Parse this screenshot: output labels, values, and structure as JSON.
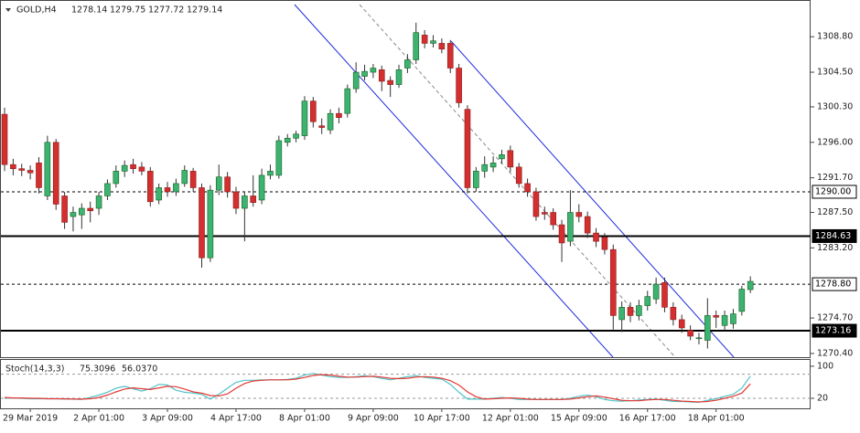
{
  "chart_data": {
    "type": "candlestick",
    "title": "GOLD,H4",
    "categories": [
      null,
      null,
      null,
      "29 Mar 2019",
      null,
      null,
      null,
      null,
      null,
      null,
      null,
      "2 Apr 01:00",
      null,
      null,
      null,
      null,
      null,
      null,
      null,
      "3 Apr 09:00",
      null,
      null,
      null,
      null,
      null,
      null,
      null,
      "4 Apr 17:00",
      null,
      null,
      null,
      null,
      null,
      null,
      null,
      "8 Apr 01:00",
      null,
      null,
      null,
      null,
      null,
      null,
      null,
      "9 Apr 09:00",
      null,
      null,
      null,
      null,
      null,
      null,
      null,
      "10 Apr 17:00",
      null,
      null,
      null,
      null,
      null,
      null,
      null,
      "12 Apr 01:00",
      null,
      null,
      null,
      null,
      null,
      null,
      null,
      "15 Apr 09:00",
      null,
      null,
      null,
      null,
      null,
      null,
      null,
      "16 Apr 17:00",
      null,
      null,
      null,
      null,
      null,
      null,
      null,
      "18 Apr 01:00",
      null,
      null,
      null,
      null
    ],
    "open": [
      1299.4,
      1293.3,
      1292.8,
      1292.6,
      1293.5,
      1289.5,
      1296,
      1289.5,
      1287,
      1287.2,
      1288,
      1288,
      1289.5,
      1291,
      1292.5,
      1293.3,
      1293,
      1292.5,
      1289,
      1290.5,
      1290,
      1291,
      1292.5,
      1290.5,
      1282,
      1290.2,
      1291.8,
      1290,
      1288,
      1289.5,
      1289,
      1292,
      1292,
      1296,
      1296.5,
      1296.8,
      1301,
      1298,
      1297.5,
      1299.5,
      1299.5,
      1302.5,
      1304,
      1304.5,
      1304.8,
      1303.5,
      1303,
      1305,
      1306,
      1309,
      1308,
      1308,
      1308,
      1305,
      1300,
      1290.5,
      1292.5,
      1293,
      1294,
      1295,
      1293,
      1291,
      1290,
      1287.5,
      1287.5,
      1286,
      1284,
      1287.5,
      1287,
      1285,
      1284.5,
      1283,
      1274.5,
      1276,
      1275,
      1276.2,
      1277,
      1279,
      1276,
      1274.5,
      1273.2,
      1272.3,
      1272,
      1275,
      1273.8,
      1274,
      1275.5,
      1278.14
    ],
    "high": [
      1300.2,
      1294,
      1293.4,
      1293.2,
      1294.2,
      1296.8,
      1296.4,
      1290,
      1288.2,
      1288.6,
      1288.8,
      1290,
      1291.5,
      1293.2,
      1293.8,
      1294,
      1293.6,
      1293,
      1291,
      1291.2,
      1291.6,
      1293.2,
      1292.9,
      1291,
      1290.8,
      1293.3,
      1292.4,
      1290.6,
      1290,
      1292,
      1292.8,
      1293.3,
      1296.8,
      1297,
      1297.4,
      1301.6,
      1301.5,
      1298.9,
      1300,
      1300.2,
      1303,
      1305.7,
      1305.4,
      1305.5,
      1305.3,
      1304,
      1305.4,
      1306.7,
      1310.5,
      1309.6,
      1309,
      1308.6,
      1308.4,
      1305.5,
      1300.5,
      1293,
      1294.3,
      1294.3,
      1295.1,
      1295.6,
      1293.5,
      1291.6,
      1290.5,
      1288.2,
      1288,
      1286.6,
      1290.2,
      1288.5,
      1287.6,
      1285.6,
      1285,
      1283.6,
      1276.7,
      1276.6,
      1276.9,
      1278,
      1279.6,
      1279.6,
      1276.6,
      1275.1,
      1273.8,
      1272.9,
      1277.1,
      1275.6,
      1275.6,
      1275.8,
      1278.6,
      1279.75
    ],
    "low": [
      1292.5,
      1292,
      1291.9,
      1291.5,
      1289.8,
      1289,
      1287.8,
      1285.5,
      1285.2,
      1285.5,
      1286.3,
      1287.2,
      1289,
      1290.5,
      1291.8,
      1292.2,
      1292,
      1288.2,
      1288.5,
      1289.4,
      1289.5,
      1290.6,
      1290,
      1280.8,
      1281.5,
      1289.6,
      1289.3,
      1287.3,
      1284,
      1288.2,
      1288.5,
      1291.5,
      1291.6,
      1295.5,
      1296,
      1296.3,
      1297.8,
      1297,
      1297,
      1298.3,
      1299,
      1302,
      1303.5,
      1303.8,
      1302.2,
      1301.5,
      1302.6,
      1304.4,
      1305.5,
      1307.4,
      1307.5,
      1306.8,
      1304.4,
      1300.2,
      1289.8,
      1290,
      1291.7,
      1292.4,
      1293.4,
      1292.4,
      1290.5,
      1289.4,
      1286.5,
      1286.6,
      1285.4,
      1281.5,
      1283.4,
      1286.3,
      1284.4,
      1283.3,
      1282.4,
      1273.3,
      1273,
      1274.2,
      1274.4,
      1275.6,
      1276.4,
      1275.4,
      1273.8,
      1272.9,
      1272,
      1271.5,
      1271,
      1273.5,
      1273.2,
      1273.4,
      1275,
      1277.72
    ],
    "close": [
      1293.3,
      1292.8,
      1292.6,
      1292.3,
      1290.5,
      1296,
      1288.5,
      1286.3,
      1287.5,
      1288,
      1287.7,
      1289.5,
      1291,
      1292.5,
      1293.2,
      1292.8,
      1292.5,
      1288.8,
      1290.5,
      1290,
      1291,
      1292.6,
      1290.5,
      1282,
      1290.2,
      1291.8,
      1290,
      1288,
      1289.5,
      1288.7,
      1292,
      1292.5,
      1296.2,
      1296.5,
      1297,
      1301,
      1298.5,
      1297.8,
      1299.5,
      1299,
      1302.5,
      1304.5,
      1304.6,
      1305,
      1303.4,
      1303,
      1304.8,
      1306,
      1309.3,
      1308,
      1308.3,
      1307.3,
      1305,
      1300.8,
      1290.5,
      1292.5,
      1293.3,
      1293.5,
      1294.5,
      1293,
      1291,
      1290,
      1287,
      1287.3,
      1286,
      1283.8,
      1287.5,
      1287,
      1285,
      1284,
      1283,
      1275,
      1276,
      1275,
      1276.2,
      1277.3,
      1278.8,
      1276,
      1274.5,
      1273.5,
      1272.5,
      1272.3,
      1275,
      1274.8,
      1275,
      1275.2,
      1278.2,
      1279.14
    ],
    "up_color": "#3cb371",
    "down_color": "#d32f2f",
    "ylim": [
      1269.95,
      1312.7
    ],
    "yticks": [
      {
        "value": 1308.8,
        "label": "1308.80"
      },
      {
        "value": 1304.5,
        "label": "1304.50"
      },
      {
        "value": 1300.3,
        "label": "1300.30"
      },
      {
        "value": 1296,
        "label": "1296.00"
      },
      {
        "value": 1291.7,
        "label": "1291.70"
      },
      {
        "value": 1287.5,
        "label": "1287.50"
      },
      {
        "value": 1283.2,
        "label": "1283.20"
      },
      {
        "value": 1274.7,
        "label": "1274.70"
      },
      {
        "value": 1270.4,
        "label": "1270.40"
      }
    ],
    "levels": [
      {
        "value": 1290,
        "label": "1290.00",
        "style": "dashed"
      },
      {
        "value": 1284.63,
        "label": "1284.63",
        "style": "solid"
      },
      {
        "value": 1278.8,
        "label": "1278.80",
        "style": "dashed"
      },
      {
        "value": 1273.16,
        "label": "1273.16",
        "style": "solid"
      }
    ],
    "indicator": {
      "name": "Stoch(14,3,3)",
      "ylim": [
        -5,
        118
      ],
      "yticks": [
        100,
        20
      ],
      "levels": [
        80,
        20
      ],
      "series": [
        {
          "name": "Main",
          "color": "#4fc3c8",
          "values": [
            20,
            21,
            20,
            19,
            19,
            19,
            19,
            18,
            18,
            17,
            22,
            28,
            35,
            45,
            50,
            44,
            38,
            44,
            55,
            53,
            40,
            35,
            33,
            30,
            18,
            30,
            45,
            60,
            65,
            65,
            66,
            66,
            66,
            67,
            70,
            78,
            82,
            78,
            74,
            72,
            72,
            74,
            76,
            74,
            70,
            66,
            70,
            74,
            76,
            72,
            70,
            68,
            55,
            35,
            18,
            18,
            18,
            20,
            22,
            20,
            17,
            17,
            17,
            17,
            17,
            17,
            20,
            25,
            28,
            24,
            17,
            14,
            13,
            14,
            16,
            17,
            18,
            15,
            12,
            12,
            11,
            10,
            15,
            19,
            25,
            30,
            45,
            75.3096
          ]
        },
        {
          "name": "Signal",
          "color": "#e53935",
          "last_label": "56.0370",
          "values": [
            22,
            21,
            21,
            20,
            20,
            19,
            19,
            19,
            18,
            18,
            19,
            22,
            28,
            36,
            43,
            46,
            44,
            42,
            46,
            50,
            49,
            43,
            36,
            33,
            27,
            26,
            31,
            45,
            57,
            63,
            65,
            66,
            66,
            66,
            68,
            72,
            77,
            79,
            78,
            75,
            73,
            73,
            74,
            75,
            73,
            70,
            69,
            70,
            73,
            74,
            73,
            70,
            64,
            53,
            36,
            24,
            18,
            19,
            20,
            21,
            20,
            18,
            17,
            17,
            17,
            17,
            18,
            21,
            24,
            26,
            23,
            19,
            15,
            14,
            14,
            16,
            17,
            17,
            15,
            13,
            12,
            11,
            12,
            15,
            20,
            25,
            33,
            56.037
          ]
        }
      ]
    }
  }
}
